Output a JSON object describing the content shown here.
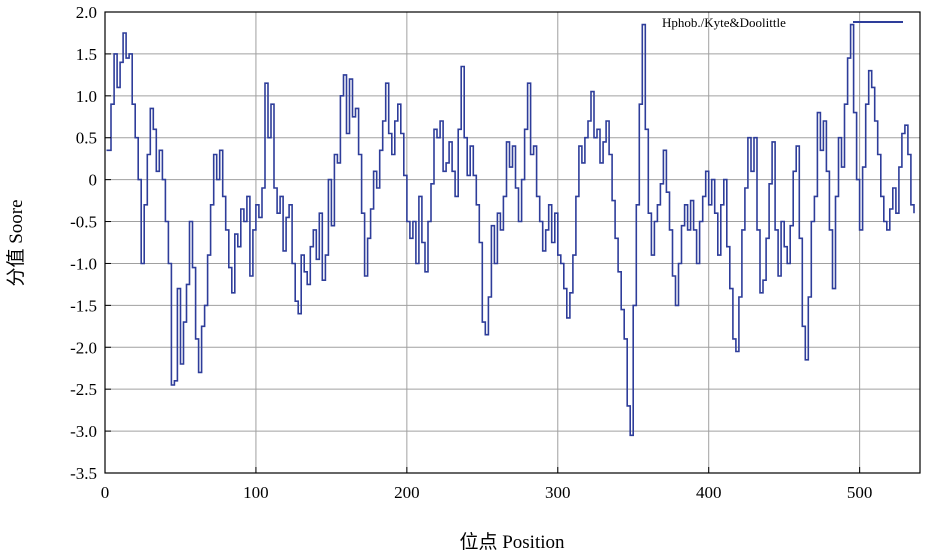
{
  "chart_data": {
    "type": "line",
    "xlabel": "位点 Position",
    "ylabel": "分值 Soore",
    "xlim": [
      0,
      540
    ],
    "ylim": [
      -3.5,
      2.0
    ],
    "x_ticks": [
      "0",
      "100",
      "200",
      "300",
      "400",
      "500"
    ],
    "x_tick_values": [
      0,
      100,
      200,
      300,
      400,
      500
    ],
    "y_ticks": [
      "2.0",
      "1.5",
      "1.0",
      "0.5",
      "0",
      "-0.5",
      "-1.0",
      "-1.5",
      "-2.0",
      "-2.5",
      "-3.0",
      "-3.5"
    ],
    "y_tick_values": [
      2.0,
      1.5,
      1.0,
      0.5,
      0,
      -0.5,
      -1.0,
      -1.5,
      -2.0,
      -2.5,
      -3.0,
      -3.5
    ],
    "grid": true,
    "legend_position": "top-right",
    "series": [
      {
        "name": "Hphob./Kyte&Doolittle",
        "color": "#2e3d9a",
        "points": [
          [
            1,
            0.35
          ],
          [
            4,
            0.9
          ],
          [
            6,
            1.5
          ],
          [
            8,
            1.1
          ],
          [
            10,
            1.4
          ],
          [
            12,
            1.75
          ],
          [
            14,
            1.45
          ],
          [
            16,
            1.5
          ],
          [
            18,
            0.9
          ],
          [
            20,
            0.5
          ],
          [
            22,
            0.0
          ],
          [
            24,
            -1.0
          ],
          [
            26,
            -0.3
          ],
          [
            28,
            0.3
          ],
          [
            30,
            0.85
          ],
          [
            32,
            0.6
          ],
          [
            34,
            0.1
          ],
          [
            36,
            0.35
          ],
          [
            38,
            0.0
          ],
          [
            40,
            -0.5
          ],
          [
            42,
            -1.0
          ],
          [
            44,
            -2.45
          ],
          [
            46,
            -2.4
          ],
          [
            48,
            -1.3
          ],
          [
            50,
            -2.2
          ],
          [
            52,
            -1.7
          ],
          [
            54,
            -1.25
          ],
          [
            56,
            -0.5
          ],
          [
            58,
            -1.05
          ],
          [
            60,
            -1.9
          ],
          [
            62,
            -2.3
          ],
          [
            64,
            -1.75
          ],
          [
            66,
            -1.5
          ],
          [
            68,
            -0.9
          ],
          [
            70,
            -0.3
          ],
          [
            72,
            0.3
          ],
          [
            74,
            0.0
          ],
          [
            76,
            0.35
          ],
          [
            78,
            -0.2
          ],
          [
            80,
            -0.6
          ],
          [
            82,
            -1.05
          ],
          [
            84,
            -1.35
          ],
          [
            86,
            -0.65
          ],
          [
            88,
            -0.8
          ],
          [
            90,
            -0.35
          ],
          [
            92,
            -0.5
          ],
          [
            94,
            -0.2
          ],
          [
            96,
            -1.15
          ],
          [
            98,
            -0.6
          ],
          [
            100,
            -0.3
          ],
          [
            102,
            -0.45
          ],
          [
            104,
            -0.1
          ],
          [
            106,
            1.15
          ],
          [
            108,
            0.5
          ],
          [
            110,
            0.9
          ],
          [
            112,
            -0.1
          ],
          [
            114,
            -0.4
          ],
          [
            116,
            -0.2
          ],
          [
            118,
            -0.85
          ],
          [
            120,
            -0.45
          ],
          [
            122,
            -0.3
          ],
          [
            124,
            -1.0
          ],
          [
            126,
            -1.45
          ],
          [
            128,
            -1.6
          ],
          [
            130,
            -0.9
          ],
          [
            132,
            -1.1
          ],
          [
            134,
            -1.25
          ],
          [
            136,
            -0.8
          ],
          [
            138,
            -0.6
          ],
          [
            140,
            -0.95
          ],
          [
            142,
            -0.4
          ],
          [
            144,
            -1.2
          ],
          [
            146,
            -0.9
          ],
          [
            148,
            0.0
          ],
          [
            150,
            -0.55
          ],
          [
            152,
            0.3
          ],
          [
            154,
            0.2
          ],
          [
            156,
            1.0
          ],
          [
            158,
            1.25
          ],
          [
            160,
            0.55
          ],
          [
            162,
            1.2
          ],
          [
            164,
            0.75
          ],
          [
            166,
            0.85
          ],
          [
            168,
            0.3
          ],
          [
            170,
            -0.4
          ],
          [
            172,
            -1.15
          ],
          [
            174,
            -0.7
          ],
          [
            176,
            -0.35
          ],
          [
            178,
            0.1
          ],
          [
            180,
            -0.1
          ],
          [
            182,
            0.35
          ],
          [
            184,
            0.7
          ],
          [
            186,
            1.15
          ],
          [
            188,
            0.55
          ],
          [
            190,
            0.3
          ],
          [
            192,
            0.7
          ],
          [
            194,
            0.9
          ],
          [
            196,
            0.55
          ],
          [
            198,
            0.05
          ],
          [
            200,
            -0.5
          ],
          [
            202,
            -0.7
          ],
          [
            204,
            -0.5
          ],
          [
            206,
            -1.0
          ],
          [
            208,
            -0.2
          ],
          [
            210,
            -0.75
          ],
          [
            212,
            -1.1
          ],
          [
            214,
            -0.5
          ],
          [
            216,
            -0.05
          ],
          [
            218,
            0.6
          ],
          [
            220,
            0.5
          ],
          [
            222,
            0.7
          ],
          [
            224,
            0.1
          ],
          [
            226,
            0.2
          ],
          [
            228,
            0.45
          ],
          [
            230,
            0.1
          ],
          [
            232,
            -0.2
          ],
          [
            234,
            0.6
          ],
          [
            236,
            1.35
          ],
          [
            238,
            0.5
          ],
          [
            240,
            0.05
          ],
          [
            242,
            0.4
          ],
          [
            244,
            0.05
          ],
          [
            246,
            -0.3
          ],
          [
            248,
            -0.75
          ],
          [
            250,
            -1.7
          ],
          [
            252,
            -1.85
          ],
          [
            254,
            -1.4
          ],
          [
            256,
            -0.55
          ],
          [
            258,
            -1.0
          ],
          [
            260,
            -0.4
          ],
          [
            262,
            -0.6
          ],
          [
            264,
            -0.2
          ],
          [
            266,
            0.45
          ],
          [
            268,
            0.15
          ],
          [
            270,
            0.4
          ],
          [
            272,
            -0.1
          ],
          [
            274,
            -0.5
          ],
          [
            276,
            0.0
          ],
          [
            278,
            0.6
          ],
          [
            280,
            1.15
          ],
          [
            282,
            0.3
          ],
          [
            284,
            0.4
          ],
          [
            286,
            -0.2
          ],
          [
            288,
            -0.5
          ],
          [
            290,
            -0.85
          ],
          [
            292,
            -0.6
          ],
          [
            294,
            -0.3
          ],
          [
            296,
            -0.75
          ],
          [
            298,
            -0.4
          ],
          [
            300,
            -0.9
          ],
          [
            302,
            -1.0
          ],
          [
            304,
            -1.3
          ],
          [
            306,
            -1.65
          ],
          [
            308,
            -1.35
          ],
          [
            310,
            -0.9
          ],
          [
            312,
            -0.2
          ],
          [
            314,
            0.4
          ],
          [
            316,
            0.2
          ],
          [
            318,
            0.5
          ],
          [
            320,
            0.7
          ],
          [
            322,
            1.05
          ],
          [
            324,
            0.5
          ],
          [
            326,
            0.6
          ],
          [
            328,
            0.2
          ],
          [
            330,
            0.45
          ],
          [
            332,
            0.7
          ],
          [
            334,
            0.3
          ],
          [
            336,
            -0.25
          ],
          [
            338,
            -0.7
          ],
          [
            340,
            -1.1
          ],
          [
            342,
            -1.55
          ],
          [
            344,
            -1.9
          ],
          [
            346,
            -2.7
          ],
          [
            348,
            -3.05
          ],
          [
            350,
            -1.5
          ],
          [
            352,
            -0.3
          ],
          [
            354,
            0.9
          ],
          [
            356,
            1.85
          ],
          [
            358,
            0.6
          ],
          [
            360,
            -0.4
          ],
          [
            362,
            -0.9
          ],
          [
            364,
            -0.5
          ],
          [
            366,
            -0.3
          ],
          [
            368,
            -0.05
          ],
          [
            370,
            0.35
          ],
          [
            372,
            -0.15
          ],
          [
            374,
            -0.6
          ],
          [
            376,
            -1.15
          ],
          [
            378,
            -1.5
          ],
          [
            380,
            -1.0
          ],
          [
            382,
            -0.55
          ],
          [
            384,
            -0.3
          ],
          [
            386,
            -0.6
          ],
          [
            388,
            -0.25
          ],
          [
            390,
            -0.6
          ],
          [
            392,
            -1.0
          ],
          [
            394,
            -0.5
          ],
          [
            396,
            -0.2
          ],
          [
            398,
            0.1
          ],
          [
            400,
            -0.3
          ],
          [
            402,
            0.0
          ],
          [
            404,
            -0.4
          ],
          [
            406,
            -0.9
          ],
          [
            408,
            -0.3
          ],
          [
            410,
            0.0
          ],
          [
            412,
            -0.8
          ],
          [
            414,
            -1.3
          ],
          [
            416,
            -1.9
          ],
          [
            418,
            -2.05
          ],
          [
            420,
            -1.4
          ],
          [
            422,
            -0.6
          ],
          [
            424,
            -0.1
          ],
          [
            426,
            0.5
          ],
          [
            428,
            0.1
          ],
          [
            430,
            0.5
          ],
          [
            432,
            -0.6
          ],
          [
            434,
            -1.35
          ],
          [
            436,
            -1.2
          ],
          [
            438,
            -0.7
          ],
          [
            440,
            -0.05
          ],
          [
            442,
            0.45
          ],
          [
            444,
            -0.6
          ],
          [
            446,
            -1.15
          ],
          [
            448,
            -0.5
          ],
          [
            450,
            -0.8
          ],
          [
            452,
            -1.0
          ],
          [
            454,
            -0.55
          ],
          [
            456,
            0.1
          ],
          [
            458,
            0.4
          ],
          [
            460,
            -0.7
          ],
          [
            462,
            -1.75
          ],
          [
            464,
            -2.15
          ],
          [
            466,
            -1.4
          ],
          [
            468,
            -0.5
          ],
          [
            470,
            -0.2
          ],
          [
            472,
            0.8
          ],
          [
            474,
            0.35
          ],
          [
            476,
            0.7
          ],
          [
            478,
            0.1
          ],
          [
            480,
            -0.6
          ],
          [
            482,
            -1.3
          ],
          [
            484,
            -0.2
          ],
          [
            486,
            0.5
          ],
          [
            488,
            0.15
          ],
          [
            490,
            0.9
          ],
          [
            492,
            1.45
          ],
          [
            494,
            1.85
          ],
          [
            496,
            0.8
          ],
          [
            498,
            0.0
          ],
          [
            500,
            -0.6
          ],
          [
            502,
            0.15
          ],
          [
            504,
            0.9
          ],
          [
            506,
            1.3
          ],
          [
            508,
            1.1
          ],
          [
            510,
            0.7
          ],
          [
            512,
            0.3
          ],
          [
            514,
            -0.2
          ],
          [
            516,
            -0.5
          ],
          [
            518,
            -0.6
          ],
          [
            520,
            -0.35
          ],
          [
            522,
            -0.1
          ],
          [
            524,
            -0.4
          ],
          [
            526,
            0.15
          ],
          [
            528,
            0.55
          ],
          [
            530,
            0.65
          ],
          [
            532,
            0.3
          ],
          [
            534,
            -0.3
          ],
          [
            536,
            -0.4
          ]
        ]
      }
    ]
  }
}
